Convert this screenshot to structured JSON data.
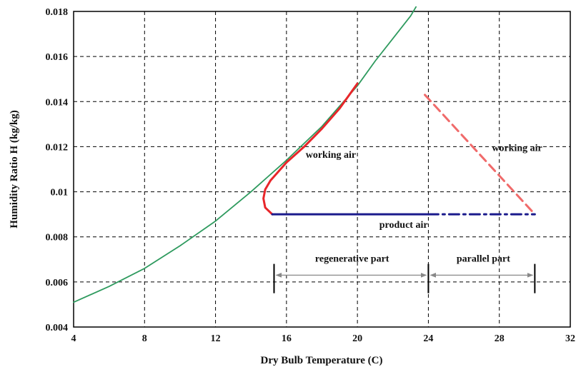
{
  "chart_data": {
    "type": "line",
    "xlabel": "Dry Bulb Temperature (C)",
    "ylabel": "Humidity Ratio H (kg/kg)",
    "xlim": [
      4,
      32
    ],
    "ylim": [
      0.004,
      0.018
    ],
    "x_ticks": [
      "4",
      "8",
      "12",
      "16",
      "20",
      "24",
      "28",
      "32"
    ],
    "y_ticks": [
      "0.004",
      "0.006",
      "0.008",
      "0.01",
      "0.012",
      "0.014",
      "0.016",
      "0.018"
    ],
    "grid": true,
    "series": [
      {
        "key": "saturation",
        "color": "#2e9a5e",
        "style": "solid",
        "x": [
          4,
          6,
          8,
          10,
          12,
          14,
          15,
          16,
          18,
          20,
          21,
          22,
          23,
          23.3
        ],
        "y": [
          0.0051,
          0.0058,
          0.0066,
          0.0076,
          0.0087,
          0.01,
          0.0107,
          0.0114,
          0.0129,
          0.0147,
          0.0158,
          0.0168,
          0.0178,
          0.0182
        ]
      },
      {
        "key": "regenerative-working",
        "color": "#e8262a",
        "style": "solid",
        "x": [
          15.2,
          14.8,
          14.7,
          14.8,
          15.1,
          16,
          17,
          18,
          19,
          20
        ],
        "y": [
          0.009,
          0.0093,
          0.0097,
          0.0101,
          0.0105,
          0.0113,
          0.012,
          0.0128,
          0.0137,
          0.0148
        ]
      },
      {
        "key": "parallel-working",
        "color": "#f06a6a",
        "style": "dashed",
        "x": [
          23.8,
          30
        ],
        "y": [
          0.0143,
          0.009
        ]
      },
      {
        "key": "product-solid",
        "color": "#1a1a8c",
        "style": "solid",
        "x": [
          15.2,
          24
        ],
        "y": [
          0.009,
          0.009
        ]
      },
      {
        "key": "product-dashdot",
        "color": "#1a1a8c",
        "style": "dashdot",
        "x": [
          24,
          30
        ],
        "y": [
          0.009,
          0.009
        ]
      }
    ],
    "annotations": {
      "working_air_left": {
        "text": "working air",
        "x": 18.5,
        "y": 0.0115
      },
      "working_air_right": {
        "text": "working air",
        "x": 29,
        "y": 0.0118
      },
      "product_air": {
        "text": "product air",
        "x": 22.6,
        "y": 0.0084
      },
      "regenerative_part": {
        "text": "regenerative part",
        "x": 19.7,
        "y": 0.0069
      },
      "parallel_part": {
        "text": "parallel part",
        "x": 27.1,
        "y": 0.0069
      }
    },
    "spans": {
      "regenerative": {
        "x_start": 15.3,
        "x_end": 24,
        "y": 0.0063
      },
      "parallel": {
        "x_start": 24,
        "x_end": 30,
        "y": 0.0063
      }
    }
  }
}
